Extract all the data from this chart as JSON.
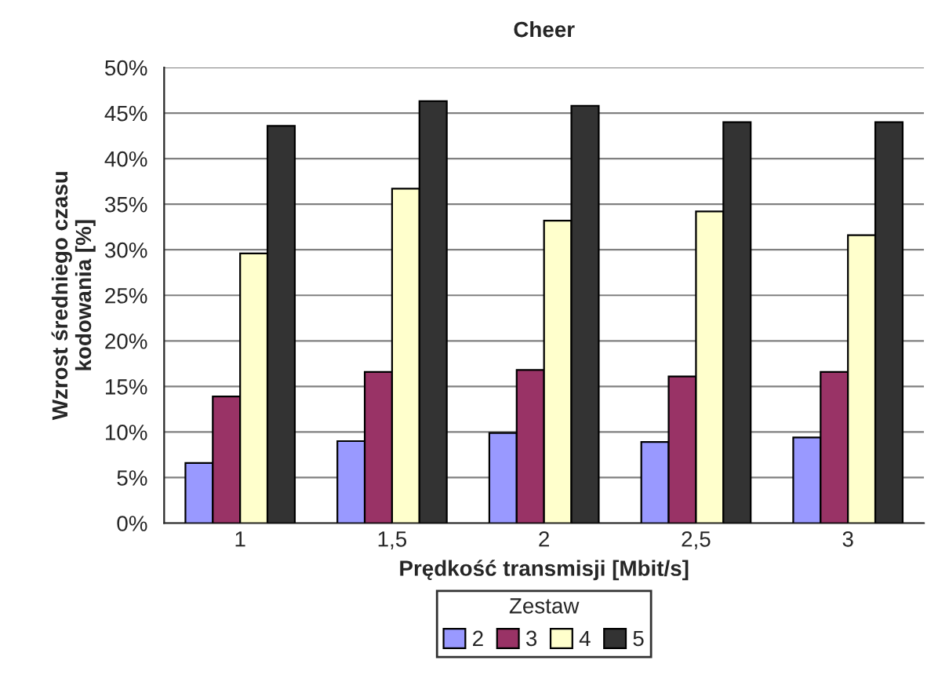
{
  "chart_data": {
    "type": "bar",
    "title": "Cheer",
    "xlabel": "Prędkość transmisji [Mbit/s]",
    "ylabel": "Wzrost średniego czasu\nkodowania [%]",
    "legend_title": "Zestaw",
    "categories": [
      "1",
      "1,5",
      "2",
      "2,5",
      "3"
    ],
    "series": [
      {
        "name": "2",
        "color": "#9999ff",
        "values": [
          6.6,
          9.0,
          9.9,
          8.9,
          9.4
        ]
      },
      {
        "name": "3",
        "color": "#993366",
        "values": [
          13.9,
          16.6,
          16.8,
          16.1,
          16.6
        ]
      },
      {
        "name": "4",
        "color": "#ffffcc",
        "values": [
          29.6,
          36.7,
          33.2,
          34.2,
          31.6
        ]
      },
      {
        "name": "5",
        "color": "#333333",
        "values": [
          43.6,
          46.3,
          45.8,
          44.0,
          44.0
        ]
      }
    ],
    "ylim": [
      0,
      50
    ],
    "yticks": [
      {
        "value": 0,
        "label": "0%"
      },
      {
        "value": 5,
        "label": "5%"
      },
      {
        "value": 10,
        "label": "10%"
      },
      {
        "value": 15,
        "label": "15%"
      },
      {
        "value": 20,
        "label": "20%"
      },
      {
        "value": 25,
        "label": "25%"
      },
      {
        "value": 30,
        "label": "30%"
      },
      {
        "value": 35,
        "label": "35%"
      },
      {
        "value": 40,
        "label": "40%"
      },
      {
        "value": 45,
        "label": "45%"
      },
      {
        "value": 50,
        "label": "50%"
      }
    ],
    "grid": "y",
    "legend": "bottom"
  }
}
